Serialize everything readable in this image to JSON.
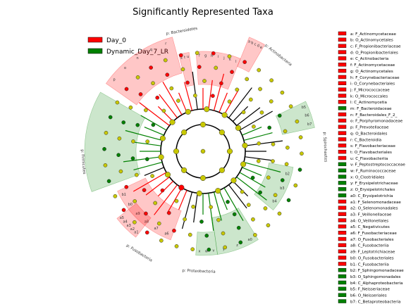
{
  "chart_data": {
    "type": "cladogram",
    "title": "Significantly Represented Taxa",
    "legend": [
      {
        "name": "Day_0",
        "color": "#ff0000"
      },
      {
        "name": "Dynamic_Day_7_LR",
        "color": "#008000"
      }
    ],
    "phylum_labels": [
      {
        "text": "p: Bacteroidetes",
        "group": "Day_0"
      },
      {
        "text": "p: Actinobacteria",
        "group": "Day_0"
      },
      {
        "text": "p: Firmicutes",
        "group": "Dynamic_Day_7_LR"
      },
      {
        "text": "p: Fusobacteria",
        "group": "Day_0"
      },
      {
        "text": "p: Proteobacteria",
        "group": "Dynamic_Day_7_LR"
      },
      {
        "text": "p: Spirochaetes",
        "group": "Dynamic_Day_7_LR"
      }
    ],
    "key": [
      {
        "text": "a: F_Actinomycetaceae",
        "group": "Day_0"
      },
      {
        "text": "b: O_Actinomycetales",
        "group": "Day_0"
      },
      {
        "text": "c: F_Propionibacteriaceae",
        "group": "Day_0"
      },
      {
        "text": "d: O_Propionibacteriales",
        "group": "Day_0"
      },
      {
        "text": "e: C_Actinobacteria",
        "group": "Day_0"
      },
      {
        "text": "f: F_Actinomycetaceae",
        "group": "Day_0"
      },
      {
        "text": "g: O_Actinomycetales",
        "group": "Day_0"
      },
      {
        "text": "h: F_Corynebacteriaceae",
        "group": "Day_0"
      },
      {
        "text": "i: O_Corynebacteriales",
        "group": "Day_0"
      },
      {
        "text": "j: F_Micrococcaceae",
        "group": "Day_0"
      },
      {
        "text": "k: O_Micrococcales",
        "group": "Day_0"
      },
      {
        "text": "l: C_Actinomycetia",
        "group": "Day_0"
      },
      {
        "text": "m: F_Bacteroidaceae",
        "group": "Dynamic_Day_7_LR"
      },
      {
        "text": "n: F_Bacteroidales_F_2_",
        "group": "Day_0"
      },
      {
        "text": "o: F_Porphyromonadaceae",
        "group": "Day_0"
      },
      {
        "text": "p: F_Prevotellaceae",
        "group": "Day_0"
      },
      {
        "text": "q: O_Bacteroidales",
        "group": "Day_0"
      },
      {
        "text": "r: C_Bacteroidia",
        "group": "Day_0"
      },
      {
        "text": "s: F_Flavobacteriaceae",
        "group": "Day_0"
      },
      {
        "text": "t: O_Flavobacteriales",
        "group": "Day_0"
      },
      {
        "text": "u: C_Flavobacteriia",
        "group": "Day_0"
      },
      {
        "text": "v: F_Peptostreptococcaceae",
        "group": "Dynamic_Day_7_LR"
      },
      {
        "text": "w: F_Ruminococcaceae",
        "group": "Dynamic_Day_7_LR"
      },
      {
        "text": "x: O_Clostridiales",
        "group": "Dynamic_Day_7_LR"
      },
      {
        "text": "y: F_Erysipelotrichaceae",
        "group": "Dynamic_Day_7_LR"
      },
      {
        "text": "z: O_Erysipelotrichales",
        "group": "Dynamic_Day_7_LR"
      },
      {
        "text": "a0: C_Erysipelotrichia",
        "group": "Dynamic_Day_7_LR"
      },
      {
        "text": "a1: F_Selenomonadaceae",
        "group": "Day_0"
      },
      {
        "text": "a2: O_Selenomonadales",
        "group": "Day_0"
      },
      {
        "text": "a3: F_Veillonellaceae",
        "group": "Day_0"
      },
      {
        "text": "a4: O_Veillonellales",
        "group": "Day_0"
      },
      {
        "text": "a5: C_Negativicutes",
        "group": "Day_0"
      },
      {
        "text": "a6: F_Fusobacteriaceae",
        "group": "Day_0"
      },
      {
        "text": "a7: O_Fusobacteriales",
        "group": "Day_0"
      },
      {
        "text": "a8: C_Fusobacteriia",
        "group": "Day_0"
      },
      {
        "text": "a9: F_Leptotrichiaceae",
        "group": "Day_0"
      },
      {
        "text": "b0: O_Fusobacteriales",
        "group": "Day_0"
      },
      {
        "text": "b1: C_Fusobacteriia",
        "group": "Day_0"
      },
      {
        "text": "b2: F_Sphingomonadaceae",
        "group": "Dynamic_Day_7_LR"
      },
      {
        "text": "b3: O_Sphingomonadales",
        "group": "Dynamic_Day_7_LR"
      },
      {
        "text": "b4: C_Alphaproteobacteria",
        "group": "Dynamic_Day_7_LR"
      },
      {
        "text": "b5: F_Neisseriaceae",
        "group": "Dynamic_Day_7_LR"
      },
      {
        "text": "b6: O_Neisseriales",
        "group": "Dynamic_Day_7_LR"
      },
      {
        "text": "b7: C_Betaproteobacteria",
        "group": "Dynamic_Day_7_LR"
      }
    ],
    "clades": [
      {
        "group": "Day_0",
        "start": 305,
        "end": 345,
        "r_in": 115,
        "r_out": 168,
        "labels": [
          "p",
          "o",
          "n",
          "q",
          "r"
        ]
      },
      {
        "group": "Day_0",
        "start": 346,
        "end": 352,
        "r_in": 95,
        "r_out": 142,
        "labels": [
          "s",
          "t",
          "u"
        ]
      },
      {
        "group": "Day_0",
        "start": 356,
        "end": 22,
        "r_in": 95,
        "r_out": 142,
        "labels": [
          "f",
          "g",
          "h",
          "i",
          "j",
          "k",
          "l"
        ]
      },
      {
        "group": "Day_0",
        "start": 22,
        "end": 30,
        "r_in": 130,
        "r_out": 175,
        "labels": [
          "a",
          "b",
          "c",
          "d",
          "e"
        ]
      },
      {
        "group": "Dynamic_Day_7_LR",
        "start": 64,
        "end": 78,
        "r_in": 115,
        "r_out": 162,
        "labels": [
          "b5",
          "b6",
          "b7"
        ]
      },
      {
        "group": "Dynamic_Day_7_LR",
        "start": 100,
        "end": 130,
        "r_in": 95,
        "r_out": 130,
        "labels": [
          "b2",
          "b3",
          "b4"
        ]
      },
      {
        "group": "Dynamic_Day_7_LR",
        "start": 148,
        "end": 172,
        "r_in": 95,
        "r_out": 148,
        "labels": [
          "a0",
          "z",
          "y"
        ]
      },
      {
        "group": "Dynamic_Day_7_LR",
        "start": 172,
        "end": 184,
        "r_in": 115,
        "r_out": 148,
        "labels": [
          "v",
          "w",
          "x"
        ]
      },
      {
        "group": "Day_0",
        "start": 200,
        "end": 245,
        "r_in": 90,
        "r_out": 134,
        "labels": [
          "a6",
          "a7",
          "a8",
          "a9",
          "b0",
          "b1"
        ]
      },
      {
        "group": "Dynamic_Day_7_LR",
        "start": 250,
        "end": 300,
        "r_in": 95,
        "r_out": 168,
        "labels": []
      },
      {
        "group": "Day_0",
        "start": 218,
        "end": 232,
        "r_in": 120,
        "r_out": 155,
        "labels": [
          "a1",
          "a2",
          "a3",
          "a4",
          "a5"
        ]
      }
    ]
  }
}
